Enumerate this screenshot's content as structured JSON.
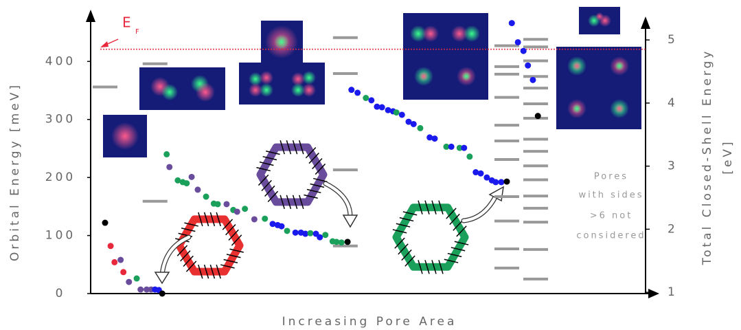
{
  "chart_data": {
    "type": "scatter",
    "x_label": "Increasing Pore Area",
    "y_label": "Orbital Energy  [meV]",
    "y2_label": [
      "Total Closed-Shell Energy",
      "[eV]"
    ],
    "fermi_label": "E",
    "fermi_subscript": "F",
    "fermi_level": 421,
    "fermi_color": "#e8283c",
    "note": [
      "Pores",
      "with sides",
      ">6 not",
      "considered"
    ],
    "xlim": [
      0,
      100
    ],
    "ylim": [
      0,
      475
    ],
    "yticks": [
      0,
      100,
      200,
      300,
      400
    ],
    "y2lim": [
      0.98,
      5.35
    ],
    "y2ticks": [
      1,
      2,
      3,
      4,
      5
    ],
    "points": {
      "x": [
        2.6,
        3.6,
        4.3,
        5.4,
        5.9,
        6.9,
        8.3,
        9.0,
        10.1,
        10.9,
        11.6,
        12.3,
        12.9,
        13.7,
        14.2,
        15.7,
        16.6,
        17.3,
        18.2,
        19.3,
        20.8,
        22.2,
        22.9,
        24.5,
        25.7,
        26.4,
        27.8,
        29.5,
        31.4,
        32.8,
        33.7,
        34.4,
        35.4,
        36.9,
        37.9,
        38.7,
        39.6,
        40.6,
        41.3,
        42.3,
        43.6,
        44.3,
        45.2,
        46.3,
        47.0,
        48.1,
        49.6,
        50.6,
        51.6,
        52.5,
        53.6,
        54.5,
        55.1,
        56.1,
        57.3,
        58.2,
        59.4,
        61.1,
        62.0,
        64.1,
        65.0,
        66.5,
        67.3,
        68.3,
        69.4,
        70.3,
        71.4,
        72.3,
        73.0,
        74.0,
        75.0,
        75.9,
        77.0,
        78.0,
        78.8,
        79.7,
        80.6
      ],
      "y": [
        122,
        82,
        54,
        58,
        37,
        20,
        26,
        7,
        7,
        7,
        7,
        6,
        0,
        240,
        218,
        195,
        192,
        190,
        201,
        179,
        167,
        155,
        154,
        154,
        144,
        141,
        146,
        128,
        129,
        120,
        118,
        116,
        108,
        105,
        105,
        103,
        104,
        103,
        97,
        101,
        90,
        89,
        88,
        89,
        351,
        346,
        337,
        333,
        322,
        321,
        316,
        314,
        312,
        308,
        296,
        292,
        285,
        269,
        267,
        253,
        253,
        251,
        251,
        236,
        209,
        207,
        200,
        195,
        192,
        192,
        193,
        466,
        433,
        418,
        393,
        368,
        306
      ],
      "colors": [
        "#000000",
        "#e8283c",
        "#e8283c",
        "#6a4c9c",
        "#e8283c",
        "#6a4c9c",
        "#1aa05a",
        "#6a4c9c",
        "#6a4c9c",
        "#6a4c9c",
        "#1a1aee",
        "#1a1aee",
        "#000000",
        "#1aa05a",
        "#6a4c9c",
        "#1aa05a",
        "#1aa05a",
        "#1aa05a",
        "#6a4c9c",
        "#6a4c9c",
        "#1aa05a",
        "#1aa05a",
        "#1aa05a",
        "#6a4c9c",
        "#1aa05a",
        "#6a4c9c",
        "#1aa05a",
        "#6a4c9c",
        "#1aa05a",
        "#1a1aee",
        "#1a1aee",
        "#1a1aee",
        "#1aa05a",
        "#1a1aee",
        "#1a1aee",
        "#1a1aee",
        "#1aa05a",
        "#1a1aee",
        "#1a1aee",
        "#1aa05a",
        "#1aa05a",
        "#1aa05a",
        "#1aa05a",
        "#000000",
        "#1a1aee",
        "#1a1aee",
        "#1aa05a",
        "#1a1aee",
        "#1a1aee",
        "#1a1aee",
        "#1a1aee",
        "#1a1aee",
        "#1aa05a",
        "#1a1aee",
        "#1a1aee",
        "#1a1aee",
        "#1aa05a",
        "#1a1aee",
        "#1a1aee",
        "#1aa05a",
        "#1a1aee",
        "#1aa05a",
        "#1a1aee",
        "#1aa05a",
        "#1a1aee",
        "#1a1aee",
        "#1a1aee",
        "#1a1aee",
        "#1a1aee",
        "#1a1aee",
        "#000000",
        "#1a1aee",
        "#1a1aee",
        "#1a1aee",
        "#1a1aee",
        "#1a1aee",
        "#000000"
      ]
    },
    "level_color": "#999999",
    "levels": [
      {
        "x": 2.6,
        "values": [
          356
        ]
      },
      {
        "x": 11.6,
        "values": [
          396,
          159
        ]
      },
      {
        "x": 45.9,
        "values": [
          441,
          379,
          213,
          82
        ]
      },
      {
        "x": 75.0,
        "values": [
          427,
          391,
          378,
          338,
          290,
          263,
          231,
          167,
          125,
          77,
          44
        ]
      },
      {
        "x": 80.2,
        "values": [
          438,
          425,
          401,
          374,
          354,
          327,
          302,
          266,
          245,
          220,
          196,
          168,
          147,
          123,
          76,
          25
        ]
      }
    ]
  }
}
